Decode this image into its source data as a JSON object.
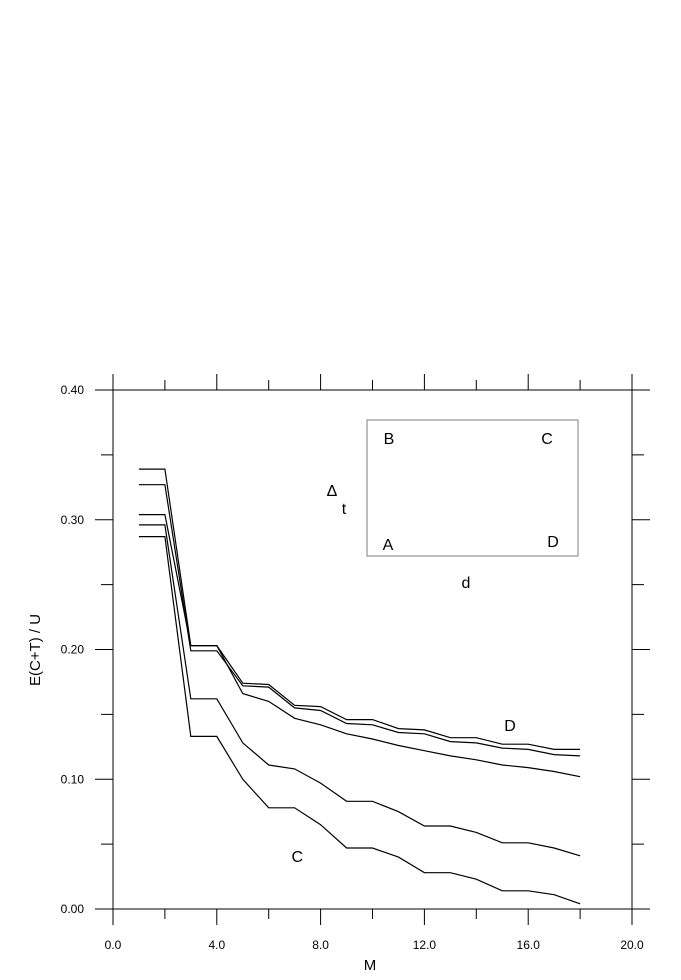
{
  "chart_data": {
    "type": "line",
    "title": "",
    "xlabel": "M",
    "ylabel": "E(C+T) / U",
    "xlim": [
      0,
      20
    ],
    "ylim": [
      0,
      0.4
    ],
    "x_ticks": [
      0,
      4,
      8,
      12,
      16,
      20
    ],
    "x_tick_labels": [
      "0.0",
      "4.0",
      "8.0",
      "12.0",
      "16.0",
      "20.0"
    ],
    "y_ticks": [
      0,
      0.1,
      0.2,
      0.3,
      0.4
    ],
    "y_tick_labels": [
      "0.00",
      "0.10",
      "0.20",
      "0.30",
      "0.40"
    ],
    "x": [
      1,
      2,
      3,
      4,
      5,
      6,
      7,
      8,
      9,
      10,
      11,
      12,
      13,
      14,
      15,
      16,
      17,
      18
    ],
    "series": [
      {
        "values": [
          0.339,
          0.339,
          0.203,
          0.203,
          0.174,
          0.173,
          0.157,
          0.156,
          0.146,
          0.146,
          0.139,
          0.138,
          0.132,
          0.132,
          0.127,
          0.127,
          0.123,
          0.123
        ]
      },
      {
        "values": [
          0.327,
          0.327,
          0.199,
          0.199,
          0.172,
          0.171,
          0.155,
          0.153,
          0.143,
          0.142,
          0.136,
          0.135,
          0.129,
          0.128,
          0.124,
          0.123,
          0.119,
          0.118
        ]
      },
      {
        "values": [
          0.304,
          0.304,
          0.203,
          0.203,
          0.166,
          0.16,
          0.147,
          0.142,
          0.135,
          0.131,
          0.126,
          0.122,
          0.118,
          0.115,
          0.111,
          0.109,
          0.106,
          0.102
        ]
      },
      {
        "values": [
          0.296,
          0.296,
          0.162,
          0.162,
          0.128,
          0.111,
          0.108,
          0.097,
          0.083,
          0.083,
          0.075,
          0.064,
          0.064,
          0.059,
          0.051,
          0.051,
          0.047,
          0.041
        ]
      },
      {
        "values": [
          0.287,
          0.287,
          0.133,
          0.133,
          0.1,
          0.078,
          0.078,
          0.065,
          0.047,
          0.047,
          0.04,
          0.028,
          0.028,
          0.023,
          0.014,
          0.014,
          0.011,
          0.004
        ]
      }
    ],
    "annotations": [
      {
        "text": "D",
        "x": 15.3,
        "y": 0.142
      },
      {
        "text": "C",
        "x": 7.1,
        "y": 0.041
      }
    ],
    "inset": {
      "corner_labels": {
        "top_left": "B",
        "top_right": "C",
        "bottom_left": "A",
        "bottom_right": "D"
      },
      "side_label_symbol": "Δ",
      "side_label_sub": "t",
      "bottom_label": "d"
    },
    "grid": false,
    "colors": {
      "line": "#000000",
      "inset_border": "#7f7f7f",
      "background": "#ffffff"
    }
  }
}
